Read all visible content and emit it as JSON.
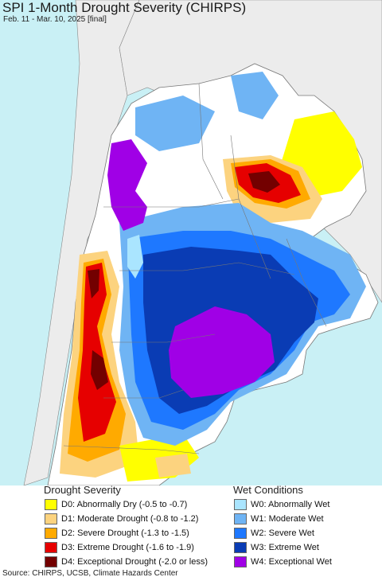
{
  "header": {
    "title": "SPI 1-Month Drought Severity (CHIRPS)",
    "subtitle": "Feb. 11 - Mar. 10, 2025 [final]"
  },
  "colors": {
    "ocean": "#c9f0f5",
    "land_outside": "#ececec",
    "border": "#888888"
  },
  "legend": {
    "drought": {
      "title": "Drought Severity",
      "items": [
        {
          "label": "D0: Abnormally Dry (-0.5 to -0.7)",
          "color": "#ffff00"
        },
        {
          "label": "D1: Moderate Drought (-0.8 to -1.2)",
          "color": "#fcd37f"
        },
        {
          "label": "D2: Severe Drought (-1.3 to -1.5)",
          "color": "#ffaa00"
        },
        {
          "label": "D3: Extreme Drought (-1.6 to -1.9)",
          "color": "#e60000"
        },
        {
          "label": "D4: Exceptional Drought (-2.0 or less)",
          "color": "#730000"
        }
      ]
    },
    "wet": {
      "title": "Wet Conditions",
      "items": [
        {
          "label": "W0: Abnormally Wet",
          "color": "#aae5ff"
        },
        {
          "label": "W1: Moderate Wet",
          "color": "#6fb4f4"
        },
        {
          "label": "W2: Severe Wet",
          "color": "#1e78ff"
        },
        {
          "label": "W3: Extreme Wet",
          "color": "#0a3cb4"
        },
        {
          "label": "W4: Exceptional Wet",
          "color": "#a000e6"
        }
      ]
    }
  },
  "footer": {
    "source": "Source: CHIRPS, UCSB, Climate Hazards Center"
  }
}
